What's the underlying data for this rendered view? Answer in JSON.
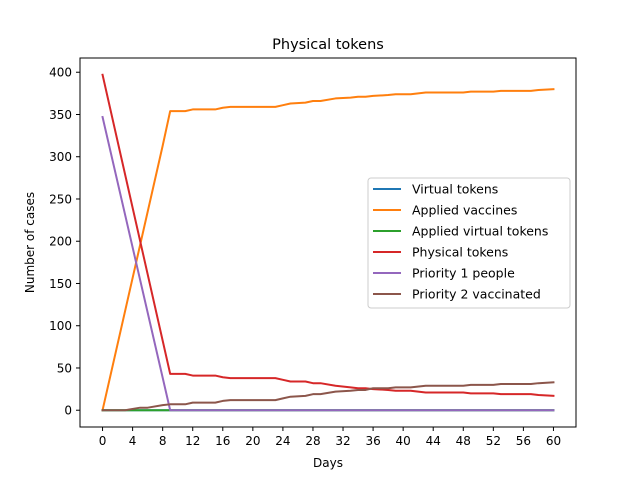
{
  "chart_data": {
    "type": "line",
    "title": "Physical tokens",
    "xlabel": "Days",
    "ylabel": "Number of cases",
    "xlim": [
      -3,
      63
    ],
    "ylim": [
      -19.85,
      416.85
    ],
    "xticks": [
      0,
      4,
      8,
      12,
      16,
      20,
      24,
      28,
      32,
      36,
      40,
      44,
      48,
      52,
      56,
      60
    ],
    "yticks": [
      0,
      50,
      100,
      150,
      200,
      250,
      300,
      350,
      400
    ],
    "grid": false,
    "legend_position": "center-right",
    "series": [
      {
        "name": "Virtual tokens",
        "color": "#1f77b4",
        "points": [
          [
            0,
            0
          ],
          [
            60,
            0
          ]
        ]
      },
      {
        "name": "Applied vaccines",
        "color": "#ff7f0e",
        "points": [
          [
            0,
            0
          ],
          [
            8,
            313
          ],
          [
            9,
            354
          ],
          [
            11,
            354
          ],
          [
            12,
            356
          ],
          [
            15,
            356
          ],
          [
            16,
            358
          ],
          [
            17,
            359
          ],
          [
            23,
            359
          ],
          [
            24,
            361
          ],
          [
            25,
            363
          ],
          [
            27,
            364
          ],
          [
            28,
            366
          ],
          [
            29,
            366
          ],
          [
            31,
            369
          ],
          [
            33,
            370
          ],
          [
            34,
            371
          ],
          [
            35,
            371
          ],
          [
            36,
            372
          ],
          [
            38,
            373
          ],
          [
            39,
            374
          ],
          [
            41,
            374
          ],
          [
            43,
            376
          ],
          [
            48,
            376
          ],
          [
            49,
            377
          ],
          [
            52,
            377
          ],
          [
            53,
            378
          ],
          [
            57,
            378
          ],
          [
            58,
            379
          ],
          [
            60,
            380
          ]
        ]
      },
      {
        "name": "Applied virtual tokens",
        "color": "#2ca02c",
        "points": [
          [
            0,
            0
          ],
          [
            60,
            0
          ]
        ]
      },
      {
        "name": "Physical tokens",
        "color": "#d62728",
        "points": [
          [
            0,
            397
          ],
          [
            9,
            43
          ],
          [
            11,
            43
          ],
          [
            12,
            41
          ],
          [
            15,
            41
          ],
          [
            16,
            39
          ],
          [
            17,
            38
          ],
          [
            23,
            38
          ],
          [
            24,
            36
          ],
          [
            25,
            34
          ],
          [
            27,
            34
          ],
          [
            28,
            32
          ],
          [
            29,
            32
          ],
          [
            31,
            29
          ],
          [
            33,
            27
          ],
          [
            34,
            26
          ],
          [
            35,
            26
          ],
          [
            36,
            25
          ],
          [
            38,
            24
          ],
          [
            39,
            23
          ],
          [
            41,
            23
          ],
          [
            43,
            21
          ],
          [
            48,
            21
          ],
          [
            49,
            20
          ],
          [
            52,
            20
          ],
          [
            53,
            19
          ],
          [
            57,
            19
          ],
          [
            58,
            18
          ],
          [
            60,
            17
          ]
        ]
      },
      {
        "name": "Priority 1 people",
        "color": "#9467bd",
        "points": [
          [
            0,
            347
          ],
          [
            9,
            0
          ],
          [
            60,
            0
          ]
        ]
      },
      {
        "name": "Priority 2 vaccinated",
        "color": "#8c564b",
        "points": [
          [
            0,
            0
          ],
          [
            3,
            0
          ],
          [
            5,
            3
          ],
          [
            6,
            3
          ],
          [
            8,
            6
          ],
          [
            9,
            7
          ],
          [
            11,
            7
          ],
          [
            12,
            9
          ],
          [
            15,
            9
          ],
          [
            16,
            11
          ],
          [
            17,
            12
          ],
          [
            23,
            12
          ],
          [
            24,
            14
          ],
          [
            25,
            16
          ],
          [
            27,
            17
          ],
          [
            28,
            19
          ],
          [
            29,
            19
          ],
          [
            31,
            22
          ],
          [
            33,
            23
          ],
          [
            34,
            24
          ],
          [
            35,
            24
          ],
          [
            36,
            26
          ],
          [
            38,
            26
          ],
          [
            39,
            27
          ],
          [
            41,
            27
          ],
          [
            43,
            29
          ],
          [
            48,
            29
          ],
          [
            49,
            30
          ],
          [
            52,
            30
          ],
          [
            53,
            31
          ],
          [
            57,
            31
          ],
          [
            58,
            32
          ],
          [
            60,
            33
          ]
        ]
      }
    ]
  }
}
